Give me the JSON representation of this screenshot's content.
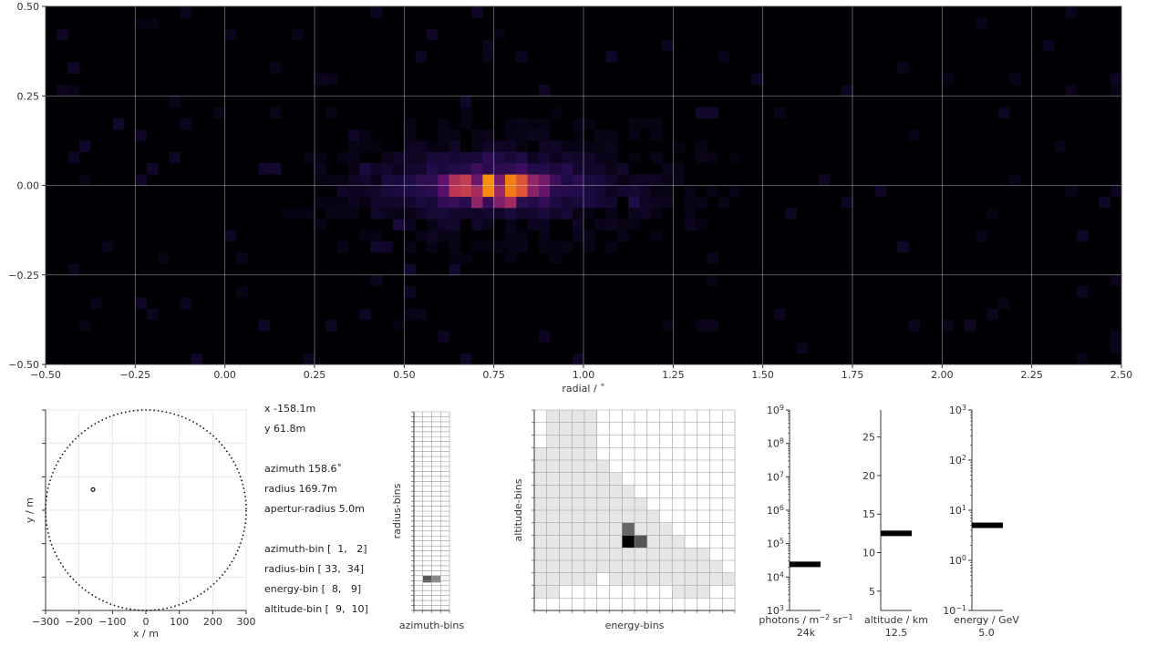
{
  "chart_data": [
    {
      "type": "heatmap",
      "xlabel": "radial / ˚",
      "xlim": [
        -0.5,
        2.5
      ],
      "ylim": [
        -0.5,
        0.5
      ],
      "x_ticks": [
        "−0.50",
        "−0.25",
        "0.00",
        "0.25",
        "0.50",
        "0.75",
        "1.00",
        "1.25",
        "1.50",
        "1.75",
        "2.00",
        "2.25",
        "2.50"
      ],
      "y_ticks": [
        "0.50",
        "0.25",
        "0.00",
        "−0.25",
        "−0.50"
      ],
      "grid": true,
      "colormap": "inferno",
      "hotspots": [
        {
          "x": 0.74,
          "y": 0.0,
          "intensity": 1.0
        },
        {
          "x": 0.8,
          "y": 0.0,
          "intensity": 0.9
        },
        {
          "x": 0.83,
          "y": 0.0,
          "intensity": 0.8
        },
        {
          "x": 0.68,
          "y": 0.0,
          "intensity": 0.72
        },
        {
          "x": 0.64,
          "y": 0.0,
          "intensity": 0.6
        },
        {
          "x": 0.71,
          "y": -0.03,
          "intensity": 0.55
        },
        {
          "x": 0.8,
          "y": -0.03,
          "intensity": 0.55
        },
        {
          "x": 0.77,
          "y": -0.03,
          "intensity": 0.5
        },
        {
          "x": 0.86,
          "y": 0.0,
          "intensity": 0.45
        },
        {
          "x": 0.89,
          "y": 0.0,
          "intensity": 0.35
        },
        {
          "x": 0.61,
          "y": 0.0,
          "intensity": 0.3
        }
      ]
    },
    {
      "type": "scatter",
      "xlabel": "x / m",
      "ylabel": "y / m",
      "xlim": [
        -300,
        300
      ],
      "ylim": [
        -300,
        300
      ],
      "x_ticks": [
        "−300",
        "−200",
        "−100",
        "0",
        "100",
        "200",
        "300"
      ],
      "circle_radius": 300,
      "point": {
        "x": -158.1,
        "y": 61.8
      },
      "grid": true
    },
    {
      "type": "heatmap",
      "xlabel": "azimuth-bins",
      "ylabel": "radius-bins",
      "columns": 4,
      "rows": 40,
      "highlight": {
        "row": 33,
        "cols": [
          1,
          2
        ]
      }
    },
    {
      "type": "heatmap",
      "xlabel": "energy-bins",
      "ylabel": "altitude-bins",
      "columns": 16,
      "rows": 16,
      "highlight": {
        "col": 8,
        "row": 9
      }
    },
    {
      "type": "bar",
      "xlabel": "photons / m",
      "xlabel_sup1": "−2",
      "xlabel_mid": " sr",
      "xlabel_sup2": "−1",
      "value_label": "24k",
      "value": 24000,
      "scale": "log",
      "ylim": [
        1000,
        1000000000
      ],
      "tick_base": "10",
      "tick_exps": [
        "3",
        "4",
        "5",
        "6",
        "7",
        "8",
        "9"
      ]
    },
    {
      "type": "bar",
      "xlabel": "altitude / km",
      "value_label": "12.5",
      "value": 12.5,
      "ylim": [
        2.5,
        28.5
      ],
      "ticks": [
        "5",
        "10",
        "15",
        "20",
        "25"
      ]
    },
    {
      "type": "bar",
      "xlabel": "energy / GeV",
      "value_label": "5.0",
      "value": 5.0,
      "scale": "log",
      "ylim": [
        0.1,
        1000
      ],
      "tick_base": "10",
      "tick_exps": [
        "−1",
        "0",
        "1",
        "2",
        "3"
      ]
    }
  ],
  "info": {
    "x": "x -158.1m",
    "y": "y 61.8m",
    "azimuth": "azimuth 158.6˚",
    "radius": "radius 169.7m",
    "aperture": "apertur-radius 5.0m",
    "azimuth_bin": "azimuth-bin [  1,   2]",
    "radius_bin": "radius-bin [ 33,  34]",
    "energy_bin": "energy-bin [  8,   9]",
    "altitude_bin": "altitude-bin [  9,  10]"
  }
}
